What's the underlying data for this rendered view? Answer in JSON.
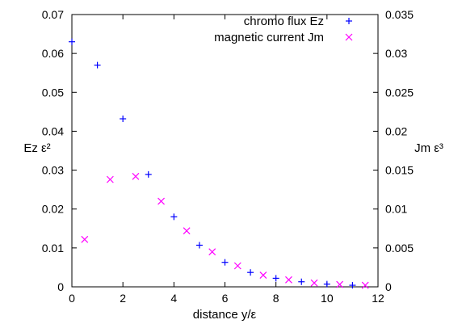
{
  "chart_data": {
    "type": "scatter",
    "xlabel": "distance y/ε",
    "ylabel_left": "Ez ε²",
    "ylabel_right": "Jm ε³",
    "xlim": [
      0,
      12
    ],
    "ylim_left": [
      0,
      0.07
    ],
    "ylim_right": [
      0,
      0.035
    ],
    "x_ticks": [
      "0",
      "2",
      "4",
      "6",
      "8",
      "10",
      "12"
    ],
    "y_left_ticks": [
      "0",
      "0.01",
      "0.02",
      "0.03",
      "0.04",
      "0.05",
      "0.06",
      "0.07"
    ],
    "y_right_ticks": [
      "0",
      "0.005",
      "0.01",
      "0.015",
      "0.02",
      "0.025",
      "0.03",
      "0.035"
    ],
    "grid": false,
    "legend_position": "top-right",
    "series": [
      {
        "name": "chromo flux Ez",
        "axis": "left",
        "marker": "plus",
        "color": "#0000ff",
        "x": [
          0,
          1,
          2,
          3,
          4,
          5,
          6,
          7,
          8,
          9,
          10,
          11
        ],
        "y": [
          0.063,
          0.057,
          0.0432,
          0.0289,
          0.018,
          0.0107,
          0.0063,
          0.0037,
          0.0022,
          0.0013,
          0.0007,
          0.0004
        ]
      },
      {
        "name": "magnetic current Jm",
        "axis": "right",
        "marker": "cross",
        "color": "#ff00ff",
        "x": [
          0.5,
          1.5,
          2.5,
          3.5,
          4.5,
          5.5,
          6.5,
          7.5,
          8.5,
          9.5,
          10.5,
          11.5
        ],
        "y": [
          0.0061,
          0.0138,
          0.0142,
          0.011,
          0.0072,
          0.0045,
          0.0027,
          0.0015,
          0.0009,
          0.0005,
          0.0003,
          0.0002
        ]
      }
    ]
  }
}
